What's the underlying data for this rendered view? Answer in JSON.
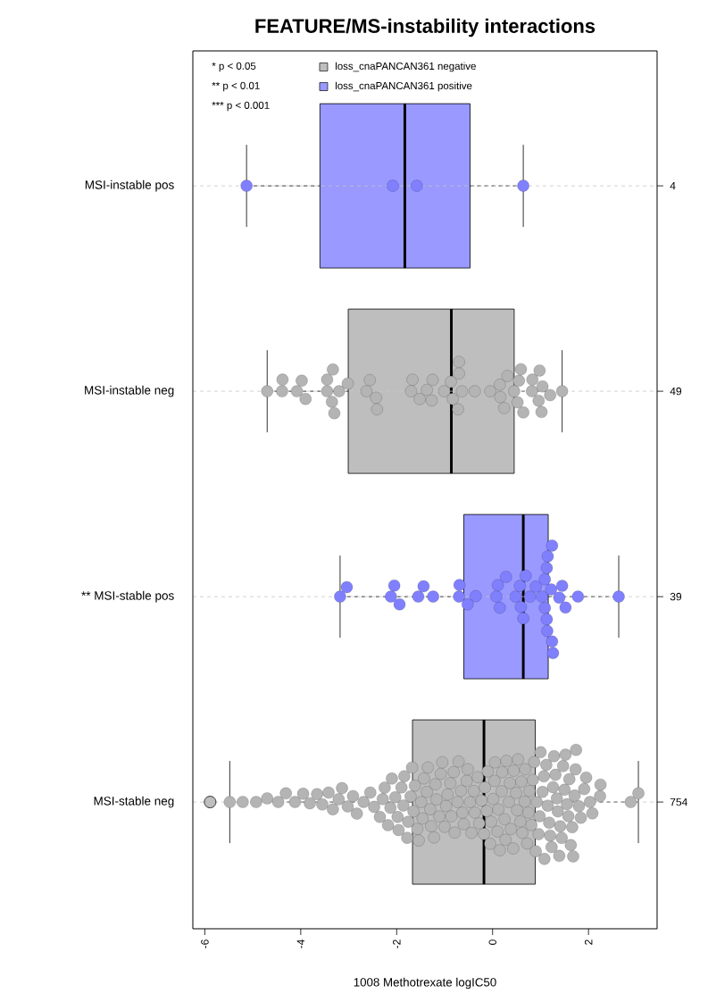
{
  "chart_data": {
    "type": "box",
    "orientation": "horizontal",
    "title": "FEATURE/MS-instability interactions",
    "xlabel": "1008 Methotrexate logIC50",
    "categories": [
      "MSI-instable pos",
      "MSI-instable neg",
      "** MSI-stable pos",
      "MSI-stable neg"
    ],
    "y2_categories": [
      "4",
      "49",
      "39",
      "754"
    ],
    "xlim": [
      -6.25,
      3.43
    ],
    "xticks": [
      -6,
      -4,
      -2,
      0,
      2
    ],
    "grid": "y",
    "legend": "top left",
    "annotations": [
      "* p < 0.05",
      "** p < 0.01",
      "*** p < 0.001"
    ],
    "series": [
      {
        "name": "loss_cnaPANCAN361 negative",
        "color": "#bebebe",
        "boxes": [
          null,
          {
            "low": -4.7,
            "q1": -3.01,
            "median": -0.86,
            "q3": 0.45,
            "high": 1.45
          },
          null,
          {
            "low": -5.48,
            "q1": -1.67,
            "median": -0.18,
            "q3": 0.89,
            "high": 3.04,
            "outliers": [
              -5.89
            ]
          }
        ]
      },
      {
        "name": "loss_cnaPANCAN361 positive",
        "color": "#9999ff",
        "boxes": [
          {
            "low": -5.13,
            "q1": -3.6,
            "median": -1.83,
            "q3": -0.47,
            "high": 0.64
          },
          null,
          {
            "low": -3.18,
            "q1": -0.6,
            "median": 0.64,
            "q3": 1.16,
            "high": 2.63
          },
          null
        ]
      },
      {
        "type": "scatter",
        "color": "#8080ff",
        "marker": "circle",
        "x": [
          "MSI-instable pos",
          "MSI-instable pos",
          "MSI-instable pos",
          "MSI-instable pos"
        ],
        "values": [
          -5.13,
          -2.08,
          -1.58,
          0.64
        ]
      },
      {
        "type": "scatter",
        "color": "#b4b4b4",
        "marker": "circle",
        "x": [
          "MSI-instable neg",
          "MSI-instable neg",
          "MSI-instable neg",
          "MSI-instable neg",
          "MSI-instable neg",
          "MSI-instable neg",
          "MSI-instable neg",
          "MSI-instable neg",
          "MSI-instable neg",
          "MSI-instable neg",
          "MSI-instable neg",
          "MSI-instable neg",
          "MSI-instable neg",
          "MSI-instable neg",
          "MSI-instable neg",
          "MSI-instable neg",
          "MSI-instable neg",
          "MSI-instable neg",
          "MSI-instable neg",
          "MSI-instable neg",
          "MSI-instable neg",
          "MSI-instable neg",
          "MSI-instable neg",
          "MSI-instable neg",
          "MSI-instable neg",
          "MSI-instable neg",
          "MSI-instable neg",
          "MSI-instable neg",
          "MSI-instable neg",
          "MSI-instable neg",
          "MSI-instable neg",
          "MSI-instable neg",
          "MSI-instable neg",
          "MSI-instable neg",
          "MSI-instable neg",
          "MSI-instable neg",
          "MSI-instable neg",
          "MSI-instable neg",
          "MSI-instable neg",
          "MSI-instable neg",
          "MSI-instable neg",
          "MSI-instable neg",
          "MSI-instable neg",
          "MSI-instable neg",
          "MSI-instable neg",
          "MSI-instable neg",
          "MSI-instable neg",
          "MSI-instable neg",
          "MSI-instable neg"
        ],
        "values": [
          -4.7,
          -4.38,
          -4.39,
          -3.98,
          -4.08,
          -3.9,
          -3.45,
          -3.33,
          -3.45,
          -3.2,
          -3.35,
          -3.3,
          -3.02,
          -2.56,
          -2.63,
          -2.43,
          -2.41,
          -1.67,
          -1.7,
          -1.52,
          -1.25,
          -1.37,
          -1.27,
          -1.01,
          -0.87,
          -0.7,
          -0.7,
          -0.83,
          -0.64,
          -0.72,
          -0.37,
          -0.05,
          0.24,
          0.15,
          0.16,
          0.31,
          0.52,
          0.64,
          0.45,
          0.55,
          0.59,
          0.83,
          0.98,
          0.82,
          1.02,
          0.96,
          1.04,
          1.2,
          1.45
        ]
      },
      {
        "type": "scatter",
        "color": "#8080ff",
        "marker": "circle",
        "x": [
          "** MSI-stable pos",
          "** MSI-stable pos",
          "** MSI-stable pos",
          "** MSI-stable pos",
          "** MSI-stable pos",
          "** MSI-stable pos",
          "** MSI-stable pos",
          "** MSI-stable pos",
          "** MSI-stable pos",
          "** MSI-stable pos",
          "** MSI-stable pos",
          "** MSI-stable pos",
          "** MSI-stable pos",
          "** MSI-stable pos",
          "** MSI-stable pos",
          "** MSI-stable pos",
          "** MSI-stable pos",
          "** MSI-stable pos",
          "** MSI-stable pos",
          "** MSI-stable pos",
          "** MSI-stable pos",
          "** MSI-stable pos",
          "** MSI-stable pos",
          "** MSI-stable pos",
          "** MSI-stable pos",
          "** MSI-stable pos",
          "** MSI-stable pos",
          "** MSI-stable pos",
          "** MSI-stable pos",
          "** MSI-stable pos",
          "** MSI-stable pos",
          "** MSI-stable pos",
          "** MSI-stable pos",
          "** MSI-stable pos",
          "** MSI-stable pos",
          "** MSI-stable pos",
          "** MSI-stable pos",
          "** MSI-stable pos",
          "** MSI-stable pos"
        ],
        "values": [
          -3.18,
          -3.04,
          -2.12,
          -2.05,
          -1.94,
          -1.55,
          -1.44,
          -1.24,
          -0.7,
          -0.69,
          -0.52,
          -0.35,
          0.08,
          0.11,
          0.28,
          0.15,
          0.48,
          0.57,
          0.69,
          0.59,
          0.64,
          0.78,
          0.9,
          1.03,
          1.09,
          1.13,
          1.15,
          1.24,
          1.09,
          1.13,
          1.14,
          1.22,
          1.26,
          1.24,
          1.39,
          1.45,
          1.52,
          1.78,
          2.63
        ]
      },
      {
        "type": "scatter",
        "color": "#b4b4b4",
        "marker": "circle",
        "x": [
          "MSI-stable neg",
          "MSI-stable neg",
          "MSI-stable neg",
          "MSI-stable neg",
          "MSI-stable neg",
          "MSI-stable neg",
          "MSI-stable neg",
          "MSI-stable neg",
          "MSI-stable neg",
          "MSI-stable neg",
          "MSI-stable neg",
          "MSI-stable neg",
          "MSI-stable neg",
          "MSI-stable neg",
          "MSI-stable neg",
          "MSI-stable neg",
          "MSI-stable neg",
          "MSI-stable neg",
          "MSI-stable neg",
          "MSI-stable neg",
          "MSI-stable neg",
          "MSI-stable neg",
          "MSI-stable neg",
          "MSI-stable neg",
          "MSI-stable neg",
          "MSI-stable neg",
          "MSI-stable neg",
          "MSI-stable neg",
          "MSI-stable neg",
          "MSI-stable neg",
          "MSI-stable neg",
          "MSI-stable neg",
          "MSI-stable neg",
          "MSI-stable neg",
          "MSI-stable neg",
          "MSI-stable neg",
          "MSI-stable neg",
          "MSI-stable neg",
          "MSI-stable neg",
          "MSI-stable neg",
          "MSI-stable neg",
          "MSI-stable neg",
          "MSI-stable neg",
          "MSI-stable neg",
          "MSI-stable neg",
          "MSI-stable neg",
          "MSI-stable neg",
          "MSI-stable neg",
          "MSI-stable neg",
          "MSI-stable neg",
          "MSI-stable neg",
          "MSI-stable neg",
          "MSI-stable neg",
          "MSI-stable neg",
          "MSI-stable neg",
          "MSI-stable neg",
          "MSI-stable neg",
          "MSI-stable neg",
          "MSI-stable neg",
          "MSI-stable neg",
          "MSI-stable neg",
          "MSI-stable neg",
          "MSI-stable neg",
          "MSI-stable neg",
          "MSI-stable neg",
          "MSI-stable neg",
          "MSI-stable neg",
          "MSI-stable neg",
          "MSI-stable neg",
          "MSI-stable neg",
          "MSI-stable neg",
          "MSI-stable neg",
          "MSI-stable neg",
          "MSI-stable neg",
          "MSI-stable neg",
          "MSI-stable neg",
          "MSI-stable neg",
          "MSI-stable neg",
          "MSI-stable neg",
          "MSI-stable neg",
          "MSI-stable neg",
          "MSI-stable neg",
          "MSI-stable neg",
          "MSI-stable neg",
          "MSI-stable neg",
          "MSI-stable neg",
          "MSI-stable neg",
          "MSI-stable neg",
          "MSI-stable neg",
          "MSI-stable neg",
          "MSI-stable neg",
          "MSI-stable neg",
          "MSI-stable neg",
          "MSI-stable neg",
          "MSI-stable neg",
          "MSI-stable neg",
          "MSI-stable neg",
          "MSI-stable neg",
          "MSI-stable neg",
          "MSI-stable neg",
          "MSI-stable neg",
          "MSI-stable neg",
          "MSI-stable neg",
          "MSI-stable neg",
          "MSI-stable neg",
          "MSI-stable neg",
          "MSI-stable neg",
          "MSI-stable neg",
          "MSI-stable neg",
          "MSI-stable neg",
          "MSI-stable neg",
          "MSI-stable neg",
          "MSI-stable neg",
          "MSI-stable neg",
          "MSI-stable neg",
          "MSI-stable neg",
          "MSI-stable neg",
          "MSI-stable neg",
          "MSI-stable neg",
          "MSI-stable neg",
          "MSI-stable neg",
          "MSI-stable neg",
          "MSI-stable neg",
          "MSI-stable neg",
          "MSI-stable neg",
          "MSI-stable neg",
          "MSI-stable neg",
          "MSI-stable neg",
          "MSI-stable neg",
          "MSI-stable neg",
          "MSI-stable neg",
          "MSI-stable neg",
          "MSI-stable neg",
          "MSI-stable neg",
          "MSI-stable neg",
          "MSI-stable neg",
          "MSI-stable neg",
          "MSI-stable neg",
          "MSI-stable neg",
          "MSI-stable neg",
          "MSI-stable neg",
          "MSI-stable neg",
          "MSI-stable neg",
          "MSI-stable neg",
          "MSI-stable neg",
          "MSI-stable neg",
          "MSI-stable neg",
          "MSI-stable neg",
          "MSI-stable neg",
          "MSI-stable neg",
          "MSI-stable neg",
          "MSI-stable neg",
          "MSI-stable neg",
          "MSI-stable neg"
        ],
        "values": [
          -5.48,
          -5.21,
          -4.93,
          -4.7,
          -4.47,
          -4.31,
          -4.12,
          -3.95,
          -3.81,
          -3.66,
          -3.55,
          -3.42,
          -3.33,
          -3.21,
          -3.14,
          -3.02,
          -2.91,
          -2.83,
          -2.69,
          -2.55,
          -2.47,
          -2.35,
          -2.29,
          -2.25,
          -2.18,
          -2.13,
          -2.1,
          -2.03,
          -1.98,
          -1.96,
          -1.9,
          -1.86,
          -1.84,
          -1.78,
          -1.76,
          -1.71,
          -1.68,
          -1.65,
          -1.62,
          -1.57,
          -1.54,
          -1.49,
          -1.46,
          -1.43,
          -1.37,
          -1.35,
          -1.3,
          -1.28,
          -1.22,
          -1.19,
          -1.17,
          -1.11,
          -1.08,
          -1.05,
          -1.0,
          -0.97,
          -0.94,
          -0.88,
          -0.86,
          -0.81,
          -0.79,
          -0.73,
          -0.71,
          -0.66,
          -0.63,
          -0.6,
          -0.54,
          -0.52,
          -0.47,
          -0.44,
          -0.39,
          -0.37,
          -0.31,
          -0.28,
          -0.23,
          -0.18,
          -0.16,
          -0.12,
          -0.1,
          -0.05,
          -0.03,
          0.01,
          0.04,
          0.05,
          0.1,
          0.12,
          0.15,
          0.19,
          0.2,
          0.25,
          0.27,
          0.29,
          0.34,
          0.36,
          0.38,
          0.43,
          0.44,
          0.49,
          0.51,
          0.53,
          0.58,
          0.6,
          0.62,
          0.67,
          0.68,
          0.72,
          0.75,
          0.77,
          0.81,
          0.84,
          0.87,
          0.9,
          0.92,
          0.96,
          0.98,
          1.0,
          1.04,
          1.07,
          1.08,
          1.12,
          1.15,
          1.18,
          1.2,
          1.23,
          1.26,
          1.28,
          1.31,
          1.34,
          1.36,
          1.39,
          1.41,
          1.44,
          1.47,
          1.5,
          1.52,
          1.55,
          1.58,
          1.6,
          1.63,
          1.66,
          1.68,
          1.71,
          1.73,
          1.74,
          1.8,
          1.84,
          1.91,
          1.95,
          2.03,
          2.08,
          2.24,
          2.25,
          2.88,
          3.04
        ]
      }
    ]
  }
}
